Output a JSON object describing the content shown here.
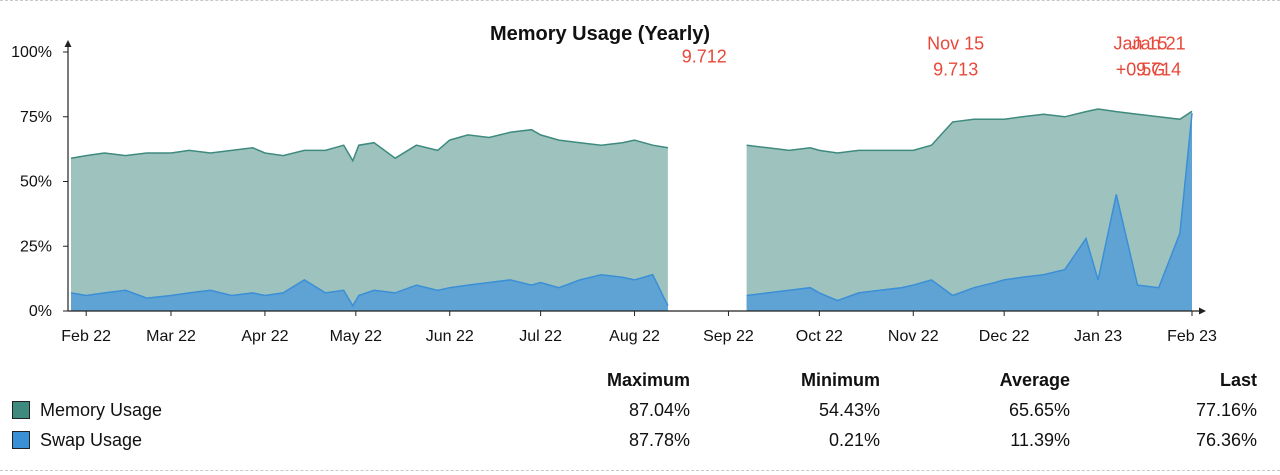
{
  "chart_data": {
    "type": "area",
    "title": "Memory Usage (Yearly)",
    "y_ticks": [
      "0%",
      "25%",
      "50%",
      "75%",
      "100%"
    ],
    "ylim": [
      0,
      100
    ],
    "x_ticks": [
      "Feb 22",
      "Mar 22",
      "Apr 22",
      "May 22",
      "Jun 22",
      "Jul 22",
      "Aug 22",
      "Sep 22",
      "Oct 22",
      "Nov 22",
      "Dec 22",
      "Jan 23",
      "Feb 23"
    ],
    "x": [
      "2022-01-27",
      "2022-02-01",
      "2022-02-07",
      "2022-02-14",
      "2022-02-21",
      "2022-03-01",
      "2022-03-07",
      "2022-03-14",
      "2022-03-21",
      "2022-03-28",
      "2022-04-01",
      "2022-04-07",
      "2022-04-14",
      "2022-04-21",
      "2022-04-27",
      "2022-04-30",
      "2022-05-02",
      "2022-05-07",
      "2022-05-14",
      "2022-05-21",
      "2022-05-28",
      "2022-06-01",
      "2022-06-07",
      "2022-06-14",
      "2022-06-21",
      "2022-06-28",
      "2022-07-01",
      "2022-07-07",
      "2022-07-14",
      "2022-07-21",
      "2022-07-28",
      "2022-08-01",
      "2022-08-07",
      "2022-08-12",
      "2022-08-21",
      "2022-08-28",
      "2022-09-01",
      "2022-09-07",
      "2022-09-14",
      "2022-09-21",
      "2022-09-28",
      "2022-10-01",
      "2022-10-07",
      "2022-10-14",
      "2022-10-21",
      "2022-10-28",
      "2022-11-01",
      "2022-11-07",
      "2022-11-14",
      "2022-11-21",
      "2022-11-28",
      "2022-12-01",
      "2022-12-07",
      "2022-12-14",
      "2022-12-21",
      "2022-12-28",
      "2023-01-01",
      "2023-01-07",
      "2023-01-14",
      "2023-01-21",
      "2023-01-28",
      "2023-02-01"
    ],
    "series": [
      {
        "name": "Memory Usage",
        "color": "#3e8a7e",
        "fill": "#9ec3bf",
        "values": [
          59,
          60,
          61,
          60,
          61,
          61,
          62,
          61,
          62,
          63,
          61,
          60,
          62,
          62,
          64,
          58,
          64,
          65,
          59,
          64,
          62,
          66,
          68,
          67,
          69,
          70,
          68,
          66,
          65,
          64,
          65,
          66,
          64,
          63,
          null,
          null,
          null,
          64,
          63,
          62,
          63,
          62,
          61,
          62,
          62,
          62,
          62,
          64,
          73,
          74,
          74,
          74,
          75,
          76,
          75,
          77,
          78,
          77,
          76,
          75,
          74,
          77.16
        ]
      },
      {
        "name": "Swap Usage",
        "color": "#3b8fd6",
        "fill": "#5ea3d4",
        "values": [
          7,
          6,
          7,
          8,
          5,
          6,
          7,
          8,
          6,
          7,
          6,
          7,
          12,
          7,
          8,
          2,
          6,
          8,
          7,
          10,
          8,
          9,
          10,
          11,
          12,
          10,
          11,
          9,
          12,
          14,
          13,
          12,
          14,
          2,
          null,
          null,
          null,
          6,
          7,
          8,
          9,
          7,
          4,
          7,
          8,
          9,
          10,
          12,
          6,
          9,
          11,
          12,
          13,
          14,
          16,
          28,
          12,
          45,
          10,
          9,
          30,
          76.36
        ]
      }
    ],
    "grid": false,
    "annotations": [
      {
        "lines": [
          "9.712"
        ],
        "x": "2022-08-24",
        "y": 96
      },
      {
        "lines": [
          "Nov 15",
          "9.713"
        ],
        "x": "2022-11-15",
        "y": 101
      },
      {
        "lines": [
          "Jan 15",
          "+0.5G"
        ],
        "x": "2023-01-15",
        "y": 101
      },
      {
        "lines": [
          "Jan 21",
          "9.714"
        ],
        "x": "2023-01-21",
        "y": 101
      }
    ]
  },
  "summary": {
    "headers": {
      "maximum": "Maximum",
      "minimum": "Minimum",
      "average": "Average",
      "last": "Last"
    },
    "rows": [
      {
        "name": "Memory Usage",
        "color": "#3e8a7e",
        "maximum": "87.04%",
        "minimum": "54.43%",
        "average": "65.65%",
        "last": "77.16%"
      },
      {
        "name": "Swap Usage",
        "color": "#3b8fd6",
        "maximum": "87.78%",
        "minimum": "0.21%",
        "average": "11.39%",
        "last": "76.36%"
      }
    ]
  },
  "annotation_color": "#e8483a"
}
